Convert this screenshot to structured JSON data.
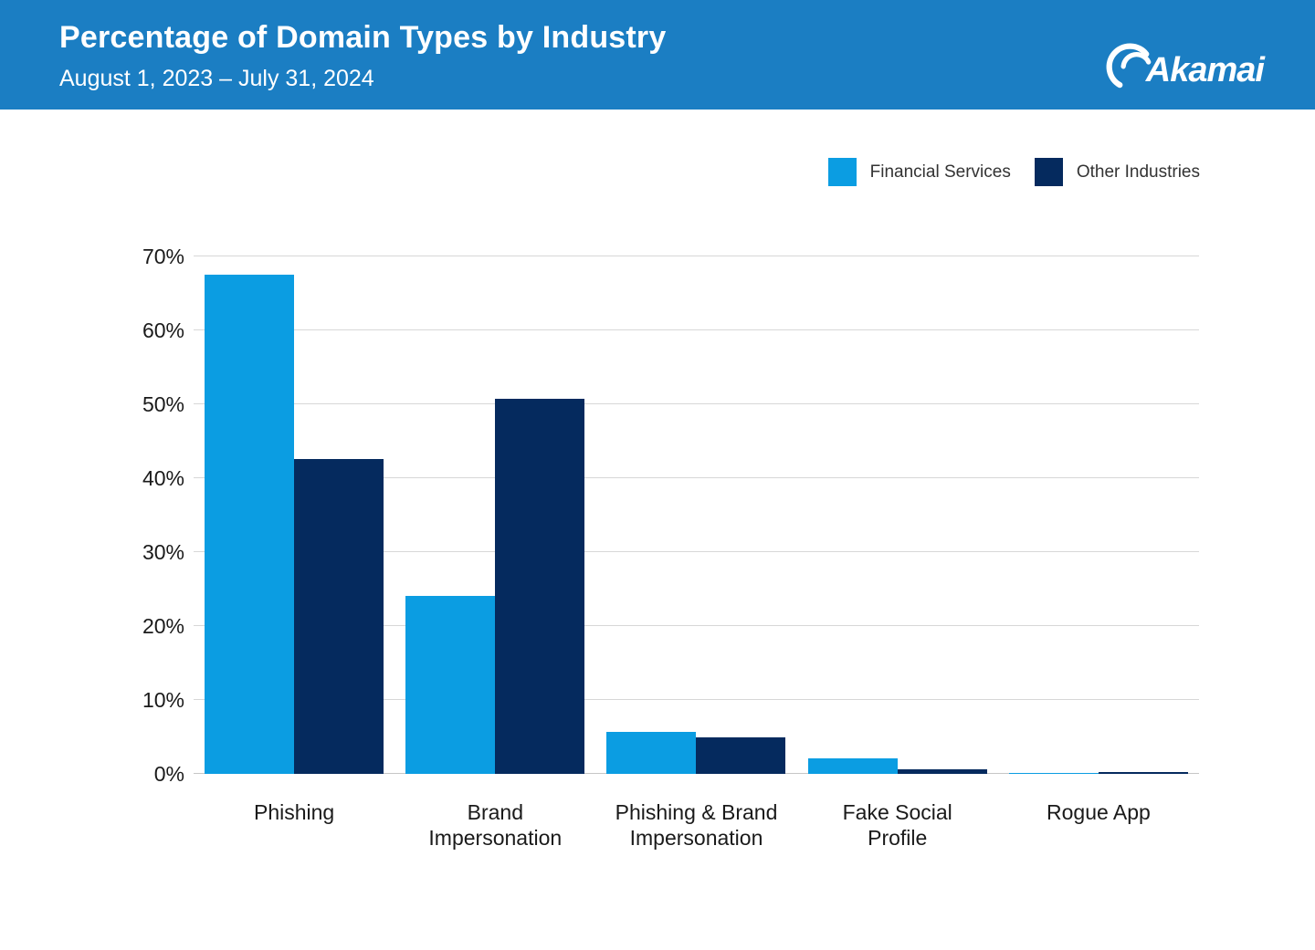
{
  "header": {
    "title": "Percentage of Domain Types by Industry",
    "subtitle": "August 1, 2023 – July 31, 2024",
    "logo_text": "Akamai",
    "background_color": "#1B7EC3"
  },
  "legend": [
    {
      "label": "Financial Services",
      "color": "#0B9DE2"
    },
    {
      "label": "Other Industries",
      "color": "#052A5E"
    }
  ],
  "chart_data": {
    "type": "bar",
    "title": "Percentage of Domain Types by Industry",
    "subtitle": "August 1, 2023 – July 31, 2024",
    "categories": [
      "Phishing",
      "Brand\nImpersonation",
      "Phishing & Brand\nImpersonation",
      "Fake Social\nProfile",
      "Rogue App"
    ],
    "series": [
      {
        "name": "Financial Services",
        "color": "#0B9DE2",
        "values": [
          67.5,
          24.1,
          5.7,
          2.1,
          0.15
        ]
      },
      {
        "name": "Other Industries",
        "color": "#052A5E",
        "values": [
          42.6,
          50.8,
          4.9,
          0.6,
          0.25
        ]
      }
    ],
    "ylabel": "",
    "xlabel": "",
    "ylim": [
      0,
      70
    ],
    "ytick_step": 10,
    "ytick_suffix": "%",
    "grid": true,
    "legend_position": "top-right",
    "colors": {
      "gridline": "#d7d7d7",
      "axis_text": "#1a1a1a"
    }
  }
}
